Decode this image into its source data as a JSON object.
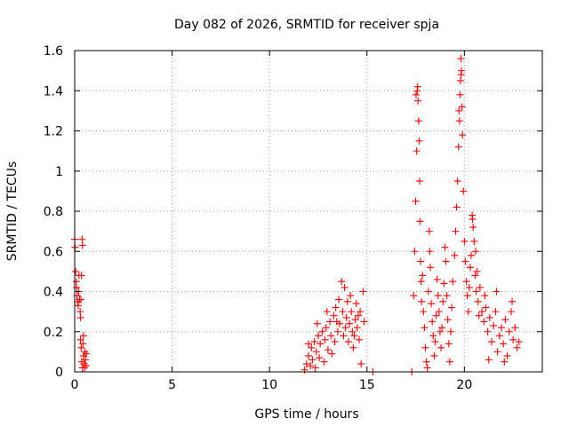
{
  "chart_data": {
    "type": "scatter",
    "title": "Day 082 of 2026, SRMTID for receiver spja",
    "xlabel": "GPS time / hours",
    "ylabel": "SRMTID / TECUs",
    "xlim": [
      0,
      24
    ],
    "ylim": [
      0,
      1.6
    ],
    "xticks": [
      "0",
      "5",
      "10",
      "15",
      "20"
    ],
    "yticks": [
      "0",
      "0.2",
      "0.4",
      "0.6",
      "0.8",
      "1",
      "1.2",
      "1.4",
      "1.6"
    ],
    "grid": true,
    "marker": "+",
    "color": "#ff0000",
    "series": [
      {
        "name": "SRMTID",
        "points": [
          [
            0.0,
            0.66
          ],
          [
            0.02,
            0.62
          ],
          [
            0.05,
            0.5
          ],
          [
            0.08,
            0.45
          ],
          [
            0.1,
            0.42
          ],
          [
            0.12,
            0.38
          ],
          [
            0.15,
            0.35
          ],
          [
            0.18,
            0.33
          ],
          [
            0.2,
            0.4
          ],
          [
            0.22,
            0.48
          ],
          [
            0.25,
            0.36
          ],
          [
            0.28,
            0.3
          ],
          [
            0.3,
            0.27
          ],
          [
            0.32,
            0.36
          ],
          [
            0.35,
            0.48
          ],
          [
            0.38,
            0.66
          ],
          [
            0.4,
            0.63
          ],
          [
            0.42,
            0.14
          ],
          [
            0.45,
            0.08
          ],
          [
            0.48,
            0.04
          ],
          [
            0.5,
            0.02
          ],
          [
            0.52,
            0.1
          ],
          [
            0.55,
            0.06
          ],
          [
            0.58,
            0.03
          ],
          [
            0.6,
            0.09
          ],
          [
            0.3,
            0.16
          ],
          [
            0.33,
            0.12
          ],
          [
            0.36,
            0.05
          ],
          [
            0.4,
            0.02
          ],
          [
            0.45,
            0.18
          ],
          [
            11.8,
            0.01
          ],
          [
            11.9,
            0.04
          ],
          [
            12.0,
            0.08
          ],
          [
            12.1,
            0.03
          ],
          [
            12.15,
            0.12
          ],
          [
            12.2,
            0.06
          ],
          [
            12.3,
            0.15
          ],
          [
            12.35,
            0.02
          ],
          [
            12.4,
            0.1
          ],
          [
            12.5,
            0.18
          ],
          [
            12.55,
            0.07
          ],
          [
            12.6,
            0.14
          ],
          [
            12.7,
            0.2
          ],
          [
            12.8,
            0.05
          ],
          [
            12.85,
            0.16
          ],
          [
            12.9,
            0.22
          ],
          [
            13.0,
            0.11
          ],
          [
            13.1,
            0.25
          ],
          [
            13.15,
            0.18
          ],
          [
            13.2,
            0.09
          ],
          [
            13.3,
            0.28
          ],
          [
            13.35,
            0.15
          ],
          [
            13.4,
            0.32
          ],
          [
            13.5,
            0.2
          ],
          [
            13.55,
            0.36
          ],
          [
            13.6,
            0.24
          ],
          [
            13.7,
            0.45
          ],
          [
            13.75,
            0.3
          ],
          [
            13.8,
            0.18
          ],
          [
            13.9,
            0.22
          ],
          [
            13.95,
            0.27
          ],
          [
            14.0,
            0.35
          ],
          [
            14.05,
            0.15
          ],
          [
            14.1,
            0.24
          ],
          [
            14.2,
            0.3
          ],
          [
            14.25,
            0.2
          ],
          [
            14.3,
            0.12
          ],
          [
            14.4,
            0.26
          ],
          [
            14.45,
            0.34
          ],
          [
            14.5,
            0.22
          ],
          [
            14.55,
            0.28
          ],
          [
            14.6,
            0.16
          ],
          [
            14.7,
            0.04
          ],
          [
            14.8,
            0.4
          ],
          [
            14.85,
            0.25
          ],
          [
            12.0,
            0.14
          ],
          [
            12.45,
            0.24
          ],
          [
            12.95,
            0.3
          ],
          [
            13.45,
            0.25
          ],
          [
            13.85,
            0.42
          ],
          [
            14.15,
            0.38
          ],
          [
            14.35,
            0.18
          ],
          [
            14.65,
            0.3
          ],
          [
            15.3,
            0.0
          ],
          [
            17.3,
            0.0
          ],
          [
            17.4,
            0.38
          ],
          [
            17.45,
            0.6
          ],
          [
            17.5,
            0.85
          ],
          [
            17.55,
            1.1
          ],
          [
            17.6,
            1.42
          ],
          [
            17.62,
            1.35
          ],
          [
            17.65,
            1.25
          ],
          [
            17.68,
            1.15
          ],
          [
            17.7,
            0.95
          ],
          [
            17.72,
            0.75
          ],
          [
            17.75,
            0.55
          ],
          [
            17.78,
            0.45
          ],
          [
            17.8,
            0.35
          ],
          [
            17.85,
            0.48
          ],
          [
            17.9,
            0.3
          ],
          [
            17.95,
            0.22
          ],
          [
            18.0,
            0.12
          ],
          [
            18.05,
            0.05
          ],
          [
            18.1,
            0.02
          ],
          [
            18.15,
            0.4
          ],
          [
            18.2,
            0.7
          ],
          [
            18.22,
            0.6
          ],
          [
            18.25,
            0.52
          ],
          [
            18.3,
            0.34
          ],
          [
            18.35,
            0.25
          ],
          [
            18.4,
            0.18
          ],
          [
            18.45,
            0.08
          ],
          [
            18.5,
            0.15
          ],
          [
            18.55,
            0.28
          ],
          [
            18.6,
            0.46
          ],
          [
            18.65,
            0.38
          ],
          [
            18.7,
            0.3
          ],
          [
            18.75,
            0.2
          ],
          [
            18.8,
            0.12
          ],
          [
            18.85,
            0.22
          ],
          [
            18.9,
            0.35
          ],
          [
            18.95,
            0.44
          ],
          [
            19.0,
            0.62
          ],
          [
            19.05,
            0.55
          ],
          [
            19.1,
            0.38
          ],
          [
            19.15,
            0.26
          ],
          [
            19.2,
            0.14
          ],
          [
            19.25,
            0.05
          ],
          [
            19.3,
            0.2
          ],
          [
            19.35,
            0.32
          ],
          [
            19.4,
            0.45
          ],
          [
            19.5,
            0.58
          ],
          [
            19.55,
            0.7
          ],
          [
            19.6,
            0.82
          ],
          [
            19.65,
            0.95
          ],
          [
            19.7,
            1.12
          ],
          [
            19.75,
            1.25
          ],
          [
            19.78,
            1.38
          ],
          [
            19.8,
            1.45
          ],
          [
            19.82,
            1.56
          ],
          [
            19.85,
            1.5
          ],
          [
            19.88,
            1.32
          ],
          [
            19.9,
            1.18
          ],
          [
            19.95,
            0.9
          ],
          [
            20.0,
            0.65
          ],
          [
            20.05,
            0.55
          ],
          [
            20.1,
            0.45
          ],
          [
            20.15,
            0.38
          ],
          [
            20.2,
            0.3
          ],
          [
            20.25,
            0.42
          ],
          [
            20.3,
            0.52
          ],
          [
            20.35,
            0.58
          ],
          [
            20.4,
            0.78
          ],
          [
            20.45,
            0.72
          ],
          [
            20.5,
            0.65
          ],
          [
            20.55,
            0.48
          ],
          [
            20.6,
            0.4
          ],
          [
            20.7,
            0.35
          ],
          [
            20.75,
            0.28
          ],
          [
            20.8,
            0.42
          ],
          [
            20.9,
            0.3
          ],
          [
            21.0,
            0.25
          ],
          [
            21.05,
            0.38
          ],
          [
            21.1,
            0.32
          ],
          [
            21.2,
            0.2
          ],
          [
            21.3,
            0.27
          ],
          [
            21.4,
            0.15
          ],
          [
            21.5,
            0.23
          ],
          [
            21.6,
            0.3
          ],
          [
            21.7,
            0.1
          ],
          [
            21.8,
            0.18
          ],
          [
            21.9,
            0.22
          ],
          [
            22.0,
            0.14
          ],
          [
            22.1,
            0.26
          ],
          [
            22.2,
            0.08
          ],
          [
            22.3,
            0.2
          ],
          [
            22.4,
            0.3
          ],
          [
            22.5,
            0.16
          ],
          [
            22.6,
            0.22
          ],
          [
            22.7,
            0.12
          ],
          [
            22.8,
            0.15
          ],
          [
            21.25,
            0.06
          ],
          [
            21.65,
            0.4
          ],
          [
            22.05,
            0.05
          ],
          [
            22.45,
            0.35
          ],
          [
            17.52,
            1.38
          ],
          [
            17.58,
            1.4
          ],
          [
            19.72,
            1.3
          ],
          [
            19.83,
            1.48
          ],
          [
            20.42,
            0.76
          ],
          [
            20.58,
            0.6
          ],
          [
            20.65,
            0.5
          ]
        ]
      }
    ]
  }
}
